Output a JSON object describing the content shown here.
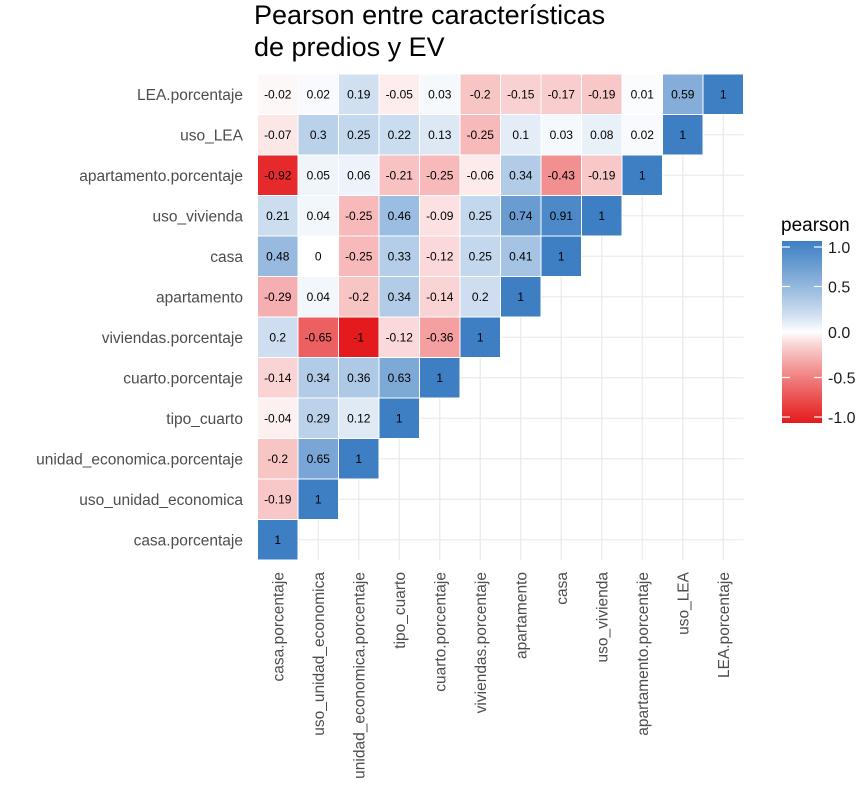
{
  "chart_data": {
    "type": "heatmap",
    "title": [
      "Pearson entre características",
      "de predios y EV"
    ],
    "variables": [
      "casa.porcentaje",
      "uso_unidad_economica",
      "unidad_economica.porcentaje",
      "tipo_cuarto",
      "cuarto.porcentaje",
      "viviendas.porcentaje",
      "apartamento",
      "casa",
      "uso_vivienda",
      "apartamento.porcentaje",
      "uso_LEA",
      "LEA.porcentaje"
    ],
    "cells": [
      {
        "x": "casa.porcentaje",
        "y": "casa.porcentaje",
        "value": 1,
        "label": "1"
      },
      {
        "x": "casa.porcentaje",
        "y": "uso_unidad_economica",
        "value": -0.19,
        "label": "-0.19"
      },
      {
        "x": "uso_unidad_economica",
        "y": "uso_unidad_economica",
        "value": 1,
        "label": "1"
      },
      {
        "x": "casa.porcentaje",
        "y": "unidad_economica.porcentaje",
        "value": -0.2,
        "label": "-0.2"
      },
      {
        "x": "uso_unidad_economica",
        "y": "unidad_economica.porcentaje",
        "value": 0.65,
        "label": "0.65"
      },
      {
        "x": "unidad_economica.porcentaje",
        "y": "unidad_economica.porcentaje",
        "value": 1,
        "label": "1"
      },
      {
        "x": "casa.porcentaje",
        "y": "tipo_cuarto",
        "value": -0.04,
        "label": "-0.04"
      },
      {
        "x": "uso_unidad_economica",
        "y": "tipo_cuarto",
        "value": 0.29,
        "label": "0.29"
      },
      {
        "x": "unidad_economica.porcentaje",
        "y": "tipo_cuarto",
        "value": 0.12,
        "label": "0.12"
      },
      {
        "x": "tipo_cuarto",
        "y": "tipo_cuarto",
        "value": 1,
        "label": "1"
      },
      {
        "x": "casa.porcentaje",
        "y": "cuarto.porcentaje",
        "value": -0.14,
        "label": "-0.14"
      },
      {
        "x": "uso_unidad_economica",
        "y": "cuarto.porcentaje",
        "value": 0.34,
        "label": "0.34"
      },
      {
        "x": "unidad_economica.porcentaje",
        "y": "cuarto.porcentaje",
        "value": 0.36,
        "label": "0.36"
      },
      {
        "x": "tipo_cuarto",
        "y": "cuarto.porcentaje",
        "value": 0.63,
        "label": "0.63"
      },
      {
        "x": "cuarto.porcentaje",
        "y": "cuarto.porcentaje",
        "value": 1,
        "label": "1"
      },
      {
        "x": "casa.porcentaje",
        "y": "viviendas.porcentaje",
        "value": 0.2,
        "label": "0.2"
      },
      {
        "x": "uso_unidad_economica",
        "y": "viviendas.porcentaje",
        "value": -0.65,
        "label": "-0.65"
      },
      {
        "x": "unidad_economica.porcentaje",
        "y": "viviendas.porcentaje",
        "value": -1,
        "label": "-1"
      },
      {
        "x": "tipo_cuarto",
        "y": "viviendas.porcentaje",
        "value": -0.12,
        "label": "-0.12"
      },
      {
        "x": "cuarto.porcentaje",
        "y": "viviendas.porcentaje",
        "value": -0.36,
        "label": "-0.36"
      },
      {
        "x": "viviendas.porcentaje",
        "y": "viviendas.porcentaje",
        "value": 1,
        "label": "1"
      },
      {
        "x": "casa.porcentaje",
        "y": "apartamento",
        "value": -0.29,
        "label": "-0.29"
      },
      {
        "x": "uso_unidad_economica",
        "y": "apartamento",
        "value": 0.04,
        "label": "0.04"
      },
      {
        "x": "unidad_economica.porcentaje",
        "y": "apartamento",
        "value": -0.2,
        "label": "-0.2"
      },
      {
        "x": "tipo_cuarto",
        "y": "apartamento",
        "value": 0.34,
        "label": "0.34"
      },
      {
        "x": "cuarto.porcentaje",
        "y": "apartamento",
        "value": -0.14,
        "label": "-0.14"
      },
      {
        "x": "viviendas.porcentaje",
        "y": "apartamento",
        "value": 0.2,
        "label": "0.2"
      },
      {
        "x": "apartamento",
        "y": "apartamento",
        "value": 1,
        "label": "1"
      },
      {
        "x": "casa.porcentaje",
        "y": "casa",
        "value": 0.48,
        "label": "0.48"
      },
      {
        "x": "uso_unidad_economica",
        "y": "casa",
        "value": 0,
        "label": "0"
      },
      {
        "x": "unidad_economica.porcentaje",
        "y": "casa",
        "value": -0.25,
        "label": "-0.25"
      },
      {
        "x": "tipo_cuarto",
        "y": "casa",
        "value": 0.33,
        "label": "0.33"
      },
      {
        "x": "cuarto.porcentaje",
        "y": "casa",
        "value": -0.12,
        "label": "-0.12"
      },
      {
        "x": "viviendas.porcentaje",
        "y": "casa",
        "value": 0.25,
        "label": "0.25"
      },
      {
        "x": "apartamento",
        "y": "casa",
        "value": 0.41,
        "label": "0.41"
      },
      {
        "x": "casa",
        "y": "casa",
        "value": 1,
        "label": "1"
      },
      {
        "x": "casa.porcentaje",
        "y": "uso_vivienda",
        "value": 0.21,
        "label": "0.21"
      },
      {
        "x": "uso_unidad_economica",
        "y": "uso_vivienda",
        "value": 0.04,
        "label": "0.04"
      },
      {
        "x": "unidad_economica.porcentaje",
        "y": "uso_vivienda",
        "value": -0.25,
        "label": "-0.25"
      },
      {
        "x": "tipo_cuarto",
        "y": "uso_vivienda",
        "value": 0.46,
        "label": "0.46"
      },
      {
        "x": "cuarto.porcentaje",
        "y": "uso_vivienda",
        "value": -0.09,
        "label": "-0.09"
      },
      {
        "x": "viviendas.porcentaje",
        "y": "uso_vivienda",
        "value": 0.25,
        "label": "0.25"
      },
      {
        "x": "apartamento",
        "y": "uso_vivienda",
        "value": 0.74,
        "label": "0.74"
      },
      {
        "x": "casa",
        "y": "uso_vivienda",
        "value": 0.91,
        "label": "0.91"
      },
      {
        "x": "uso_vivienda",
        "y": "uso_vivienda",
        "value": 1,
        "label": "1"
      },
      {
        "x": "casa.porcentaje",
        "y": "apartamento.porcentaje",
        "value": -0.92,
        "label": "-0.92"
      },
      {
        "x": "uso_unidad_economica",
        "y": "apartamento.porcentaje",
        "value": 0.05,
        "label": "0.05"
      },
      {
        "x": "unidad_economica.porcentaje",
        "y": "apartamento.porcentaje",
        "value": 0.06,
        "label": "0.06"
      },
      {
        "x": "tipo_cuarto",
        "y": "apartamento.porcentaje",
        "value": -0.21,
        "label": "-0.21"
      },
      {
        "x": "cuarto.porcentaje",
        "y": "apartamento.porcentaje",
        "value": -0.25,
        "label": "-0.25"
      },
      {
        "x": "viviendas.porcentaje",
        "y": "apartamento.porcentaje",
        "value": -0.06,
        "label": "-0.06"
      },
      {
        "x": "apartamento",
        "y": "apartamento.porcentaje",
        "value": 0.34,
        "label": "0.34"
      },
      {
        "x": "casa",
        "y": "apartamento.porcentaje",
        "value": -0.43,
        "label": "-0.43"
      },
      {
        "x": "uso_vivienda",
        "y": "apartamento.porcentaje",
        "value": -0.19,
        "label": "-0.19"
      },
      {
        "x": "apartamento.porcentaje",
        "y": "apartamento.porcentaje",
        "value": 1,
        "label": "1"
      },
      {
        "x": "casa.porcentaje",
        "y": "uso_LEA",
        "value": -0.07,
        "label": "-0.07"
      },
      {
        "x": "uso_unidad_economica",
        "y": "uso_LEA",
        "value": 0.3,
        "label": "0.3"
      },
      {
        "x": "unidad_economica.porcentaje",
        "y": "uso_LEA",
        "value": 0.25,
        "label": "0.25"
      },
      {
        "x": "tipo_cuarto",
        "y": "uso_LEA",
        "value": 0.22,
        "label": "0.22"
      },
      {
        "x": "cuarto.porcentaje",
        "y": "uso_LEA",
        "value": 0.13,
        "label": "0.13"
      },
      {
        "x": "viviendas.porcentaje",
        "y": "uso_LEA",
        "value": -0.25,
        "label": "-0.25"
      },
      {
        "x": "apartamento",
        "y": "uso_LEA",
        "value": 0.1,
        "label": "0.1"
      },
      {
        "x": "casa",
        "y": "uso_LEA",
        "value": 0.03,
        "label": "0.03"
      },
      {
        "x": "uso_vivienda",
        "y": "uso_LEA",
        "value": 0.08,
        "label": "0.08"
      },
      {
        "x": "apartamento.porcentaje",
        "y": "uso_LEA",
        "value": 0.02,
        "label": "0.02"
      },
      {
        "x": "uso_LEA",
        "y": "uso_LEA",
        "value": 1,
        "label": "1"
      },
      {
        "x": "casa.porcentaje",
        "y": "LEA.porcentaje",
        "value": -0.02,
        "label": "-0.02"
      },
      {
        "x": "uso_unidad_economica",
        "y": "LEA.porcentaje",
        "value": 0.02,
        "label": "0.02"
      },
      {
        "x": "unidad_economica.porcentaje",
        "y": "LEA.porcentaje",
        "value": 0.19,
        "label": "0.19"
      },
      {
        "x": "tipo_cuarto",
        "y": "LEA.porcentaje",
        "value": -0.05,
        "label": "-0.05"
      },
      {
        "x": "cuarto.porcentaje",
        "y": "LEA.porcentaje",
        "value": 0.03,
        "label": "0.03"
      },
      {
        "x": "viviendas.porcentaje",
        "y": "LEA.porcentaje",
        "value": -0.2,
        "label": "-0.2"
      },
      {
        "x": "apartamento",
        "y": "LEA.porcentaje",
        "value": -0.15,
        "label": "-0.15"
      },
      {
        "x": "casa",
        "y": "LEA.porcentaje",
        "value": -0.17,
        "label": "-0.17"
      },
      {
        "x": "uso_vivienda",
        "y": "LEA.porcentaje",
        "value": -0.19,
        "label": "-0.19"
      },
      {
        "x": "apartamento.porcentaje",
        "y": "LEA.porcentaje",
        "value": 0.01,
        "label": "0.01"
      },
      {
        "x": "uso_LEA",
        "y": "LEA.porcentaje",
        "value": 0.59,
        "label": "0.59"
      },
      {
        "x": "LEA.porcentaje",
        "y": "LEA.porcentaje",
        "value": 1,
        "label": "1"
      }
    ],
    "legend": {
      "title": "pearson",
      "ticks": [
        1.0,
        0.5,
        0.0,
        -0.5,
        -1.0
      ],
      "tick_labels": [
        "1.0",
        "0.5",
        "0.0",
        "-0.5",
        "-1.0"
      ],
      "range": [
        -1,
        1
      ],
      "placement": "right"
    },
    "colors": {
      "low": "#E41A1C",
      "mid": "#FFFFFF",
      "high": "#3E7FC4",
      "grid": "#EBEBEB",
      "text": "#000000",
      "axis_text": "#4D4D4D"
    },
    "grid": true
  }
}
